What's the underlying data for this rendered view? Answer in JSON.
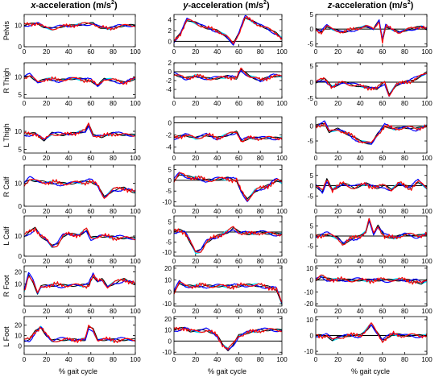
{
  "column_titles": [
    {
      "prefix": "x",
      "main": "-acceleration (m/s",
      "sup": "2",
      "suffix": ")"
    },
    {
      "prefix": "y",
      "main": "-acceleration (m/s",
      "sup": "2",
      "suffix": ")"
    },
    {
      "prefix": "z",
      "main": "-acceleration (m/s",
      "sup": "2",
      "suffix": ")"
    }
  ],
  "row_labels": [
    "Pelvis",
    "R Thigh",
    "L Thigh",
    "R Calf",
    "L Calf",
    "R Foot",
    "L Foot"
  ],
  "x_axis_label": "% gait cycle",
  "colors": {
    "red": "#ff0000",
    "blue": "#0000ff",
    "cyan": "#00e5ff",
    "black": "#000000"
  },
  "chart_data": {
    "type": "line",
    "grid": false,
    "x_range": [
      0,
      100
    ],
    "x_ticks": [
      0,
      20,
      40,
      60,
      80,
      100
    ],
    "panels": [
      {
        "row": "Pelvis",
        "column": "x",
        "ylim": [
          0,
          15
        ],
        "yticks": [
          0,
          10
        ],
        "key_x": [
          0,
          5,
          12,
          18,
          25,
          35,
          45,
          55,
          62,
          68,
          75,
          85,
          95,
          100
        ],
        "key_y": [
          10,
          10.5,
          11,
          9,
          8.5,
          9.5,
          10,
          10.5,
          11,
          9,
          8.5,
          9.5,
          10,
          10
        ]
      },
      {
        "row": "Pelvis",
        "column": "y",
        "ylim": [
          -1,
          5
        ],
        "yticks": [
          0,
          2,
          4
        ],
        "key_x": [
          0,
          6,
          12,
          20,
          30,
          40,
          48,
          55,
          60,
          66,
          75,
          85,
          95,
          100
        ],
        "key_y": [
          0,
          1.5,
          4,
          3.5,
          2.5,
          2,
          1,
          -0.5,
          1.5,
          4.5,
          3.5,
          2.5,
          1.5,
          0.5
        ]
      },
      {
        "row": "Pelvis",
        "column": "z",
        "ylim": [
          -6,
          5
        ],
        "yticks": [
          -5,
          0,
          5
        ],
        "key_x": [
          0,
          5,
          10,
          15,
          25,
          35,
          45,
          52,
          57,
          60,
          63,
          68,
          75,
          85,
          95,
          100
        ],
        "key_y": [
          0,
          -1,
          1,
          0,
          -1,
          0,
          1,
          0,
          3,
          -4,
          1,
          0,
          -1,
          0,
          1,
          0
        ]
      },
      {
        "row": "R Thigh",
        "column": "x",
        "ylim": [
          4,
          14
        ],
        "yticks": [
          5,
          10
        ],
        "key_x": [
          0,
          5,
          12,
          20,
          30,
          40,
          50,
          60,
          66,
          72,
          80,
          90,
          100
        ],
        "key_y": [
          10,
          10.5,
          8.5,
          9.5,
          9,
          9.5,
          9.5,
          9,
          7.5,
          9.5,
          9,
          8.5,
          9.5
        ]
      },
      {
        "row": "R Thigh",
        "column": "y",
        "ylim": [
          -6,
          2
        ],
        "yticks": [
          -4,
          -2,
          0,
          2
        ],
        "key_x": [
          0,
          5,
          10,
          20,
          30,
          40,
          50,
          58,
          62,
          70,
          80,
          90,
          100
        ],
        "key_y": [
          -0.5,
          -1,
          -1.5,
          -1,
          -1.5,
          -1.5,
          -1,
          -1.5,
          0.5,
          -1,
          -2,
          -1,
          -1
        ]
      },
      {
        "row": "R Thigh",
        "column": "z",
        "ylim": [
          -5,
          6
        ],
        "yticks": [
          -5,
          0,
          5
        ],
        "key_x": [
          0,
          8,
          15,
          25,
          35,
          45,
          55,
          62,
          66,
          72,
          80,
          90,
          100
        ],
        "key_y": [
          0,
          1,
          -1.5,
          0,
          -1,
          -1.5,
          -2,
          0,
          -4,
          -1,
          0,
          1,
          3
        ]
      },
      {
        "row": "L Thigh",
        "column": "x",
        "ylim": [
          4,
          14
        ],
        "yticks": [
          5,
          10
        ],
        "key_x": [
          0,
          10,
          18,
          25,
          35,
          45,
          55,
          58,
          62,
          70,
          80,
          90,
          100
        ],
        "key_y": [
          9,
          9.5,
          7.5,
          9.5,
          9,
          9.5,
          10,
          12,
          9,
          8.5,
          9.5,
          9,
          9
        ]
      },
      {
        "row": "L Thigh",
        "column": "y",
        "ylim": [
          -5,
          1
        ],
        "yticks": [
          -4,
          -2,
          0
        ],
        "key_x": [
          0,
          10,
          20,
          30,
          40,
          50,
          58,
          63,
          70,
          80,
          90,
          100
        ],
        "key_y": [
          -2.5,
          -2,
          -2.5,
          -2,
          -2.5,
          -2,
          -1.5,
          -3,
          -2.5,
          -2.5,
          -2.5,
          -2.5
        ]
      },
      {
        "row": "L Thigh",
        "column": "z",
        "ylim": [
          -9,
          3
        ],
        "yticks": [
          -5,
          0
        ],
        "key_x": [
          0,
          8,
          12,
          20,
          30,
          40,
          45,
          50,
          56,
          62,
          70,
          80,
          90,
          100
        ],
        "key_y": [
          0,
          1,
          -2,
          -1,
          -3,
          -5,
          -5.5,
          -6,
          -2.5,
          0,
          -1,
          -0.5,
          -1,
          0
        ]
      },
      {
        "row": "R Calf",
        "column": "x",
        "ylim": [
          0,
          18
        ],
        "yticks": [
          0,
          10
        ],
        "key_x": [
          0,
          5,
          10,
          20,
          30,
          40,
          50,
          60,
          66,
          72,
          80,
          90,
          100
        ],
        "key_y": [
          10,
          12,
          11,
          10.5,
          10,
          10,
          10.5,
          11,
          9,
          4,
          7,
          8,
          6
        ]
      },
      {
        "row": "R Calf",
        "column": "y",
        "ylim": [
          -12,
          7
        ],
        "yticks": [
          -10,
          -5,
          0,
          5
        ],
        "key_x": [
          0,
          5,
          10,
          20,
          30,
          40,
          50,
          58,
          62,
          68,
          75,
          85,
          95,
          100
        ],
        "key_y": [
          0,
          3,
          2,
          1,
          0,
          0.5,
          1,
          0,
          -5,
          -9,
          -5,
          -3,
          0,
          -1
        ]
      },
      {
        "row": "R Calf",
        "column": "z",
        "ylim": [
          -10,
          10
        ],
        "yticks": [
          -5,
          0,
          5
        ],
        "key_x": [
          0,
          6,
          10,
          15,
          25,
          35,
          45,
          55,
          62,
          68,
          75,
          85,
          92,
          100
        ],
        "key_y": [
          0,
          -3,
          3,
          -2,
          1,
          -1,
          1,
          -1,
          0,
          -2,
          1,
          -1,
          2,
          -1
        ]
      },
      {
        "row": "L Calf",
        "column": "x",
        "ylim": [
          0,
          20
        ],
        "yticks": [
          0,
          10
        ],
        "key_x": [
          0,
          5,
          10,
          15,
          20,
          25,
          30,
          35,
          40,
          50,
          56,
          60,
          68,
          80,
          90,
          100
        ],
        "key_y": [
          10,
          12,
          14,
          10,
          8,
          5,
          6,
          10,
          11,
          10.5,
          13,
          9,
          10,
          9.5,
          9,
          9
        ]
      },
      {
        "row": "L Calf",
        "column": "y",
        "ylim": [
          -12,
          8
        ],
        "yticks": [
          -10,
          -5,
          0,
          5
        ],
        "key_x": [
          0,
          5,
          10,
          15,
          20,
          25,
          30,
          40,
          50,
          55,
          60,
          70,
          80,
          90,
          100
        ],
        "key_y": [
          0,
          1,
          0,
          -5,
          -10,
          -9,
          -5,
          -2,
          0,
          2,
          0,
          -1,
          0,
          -1,
          -1
        ]
      },
      {
        "row": "L Calf",
        "column": "z",
        "ylim": [
          -10,
          10
        ],
        "yticks": [
          -5,
          0,
          5
        ],
        "key_x": [
          0,
          10,
          20,
          25,
          30,
          40,
          45,
          48,
          52,
          56,
          62,
          70,
          80,
          90,
          100
        ],
        "key_y": [
          0,
          1,
          -1,
          -4,
          -2,
          0,
          2,
          8,
          1,
          5,
          0,
          -1,
          1,
          0,
          1
        ]
      },
      {
        "row": "R Foot",
        "column": "x",
        "ylim": [
          -8,
          25
        ],
        "yticks": [
          0,
          10,
          20
        ],
        "key_x": [
          0,
          4,
          8,
          12,
          15,
          20,
          30,
          40,
          50,
          58,
          62,
          66,
          70,
          75,
          82,
          90,
          100
        ],
        "key_y": [
          5,
          18,
          12,
          2,
          8,
          9,
          9,
          9,
          9,
          9.5,
          17,
          12,
          14,
          8,
          11,
          14,
          10
        ]
      },
      {
        "row": "R Foot",
        "column": "y",
        "ylim": [
          -12,
          22
        ],
        "yticks": [
          -10,
          0,
          10,
          20
        ],
        "key_x": [
          0,
          5,
          10,
          20,
          30,
          40,
          50,
          55,
          60,
          70,
          80,
          90,
          95,
          100
        ],
        "key_y": [
          0,
          8,
          5,
          5,
          5,
          5,
          5,
          5,
          5,
          6,
          5,
          4,
          2,
          -10
        ]
      },
      {
        "row": "R Foot",
        "column": "z",
        "ylim": [
          -22,
          12
        ],
        "yticks": [
          -20,
          -10,
          0,
          10
        ],
        "key_x": [
          0,
          5,
          10,
          20,
          30,
          40,
          50,
          60,
          70,
          80,
          90,
          95,
          100
        ],
        "key_y": [
          0,
          3,
          1,
          0,
          0,
          0,
          0,
          0,
          0,
          0,
          -1,
          -3,
          0
        ]
      },
      {
        "row": "L Foot",
        "column": "x",
        "ylim": [
          -8,
          28
        ],
        "yticks": [
          0,
          10,
          20
        ],
        "key_x": [
          0,
          5,
          10,
          15,
          20,
          25,
          30,
          40,
          50,
          55,
          58,
          62,
          66,
          70,
          80,
          90,
          100
        ],
        "key_y": [
          5,
          6,
          14,
          18,
          10,
          5,
          6,
          6,
          6,
          6,
          18,
          16,
          6,
          6,
          6,
          6,
          6
        ]
      },
      {
        "row": "L Foot",
        "column": "y",
        "ylim": [
          -12,
          22
        ],
        "yticks": [
          -10,
          0,
          10,
          20
        ],
        "key_x": [
          0,
          10,
          15,
          20,
          30,
          40,
          45,
          50,
          55,
          60,
          70,
          80,
          90,
          100
        ],
        "key_y": [
          10,
          12,
          9,
          9,
          10,
          5,
          -3,
          -8,
          -3,
          5,
          8,
          10,
          10,
          10
        ]
      },
      {
        "row": "L Foot",
        "column": "z",
        "ylim": [
          -12,
          12
        ],
        "yticks": [
          -10,
          0,
          10
        ],
        "key_x": [
          0,
          10,
          15,
          20,
          30,
          40,
          45,
          50,
          55,
          60,
          70,
          80,
          90,
          100
        ],
        "key_y": [
          0,
          0,
          -3,
          -1,
          0,
          0,
          3,
          7,
          2,
          -3,
          1,
          0,
          0,
          0
        ]
      }
    ]
  }
}
